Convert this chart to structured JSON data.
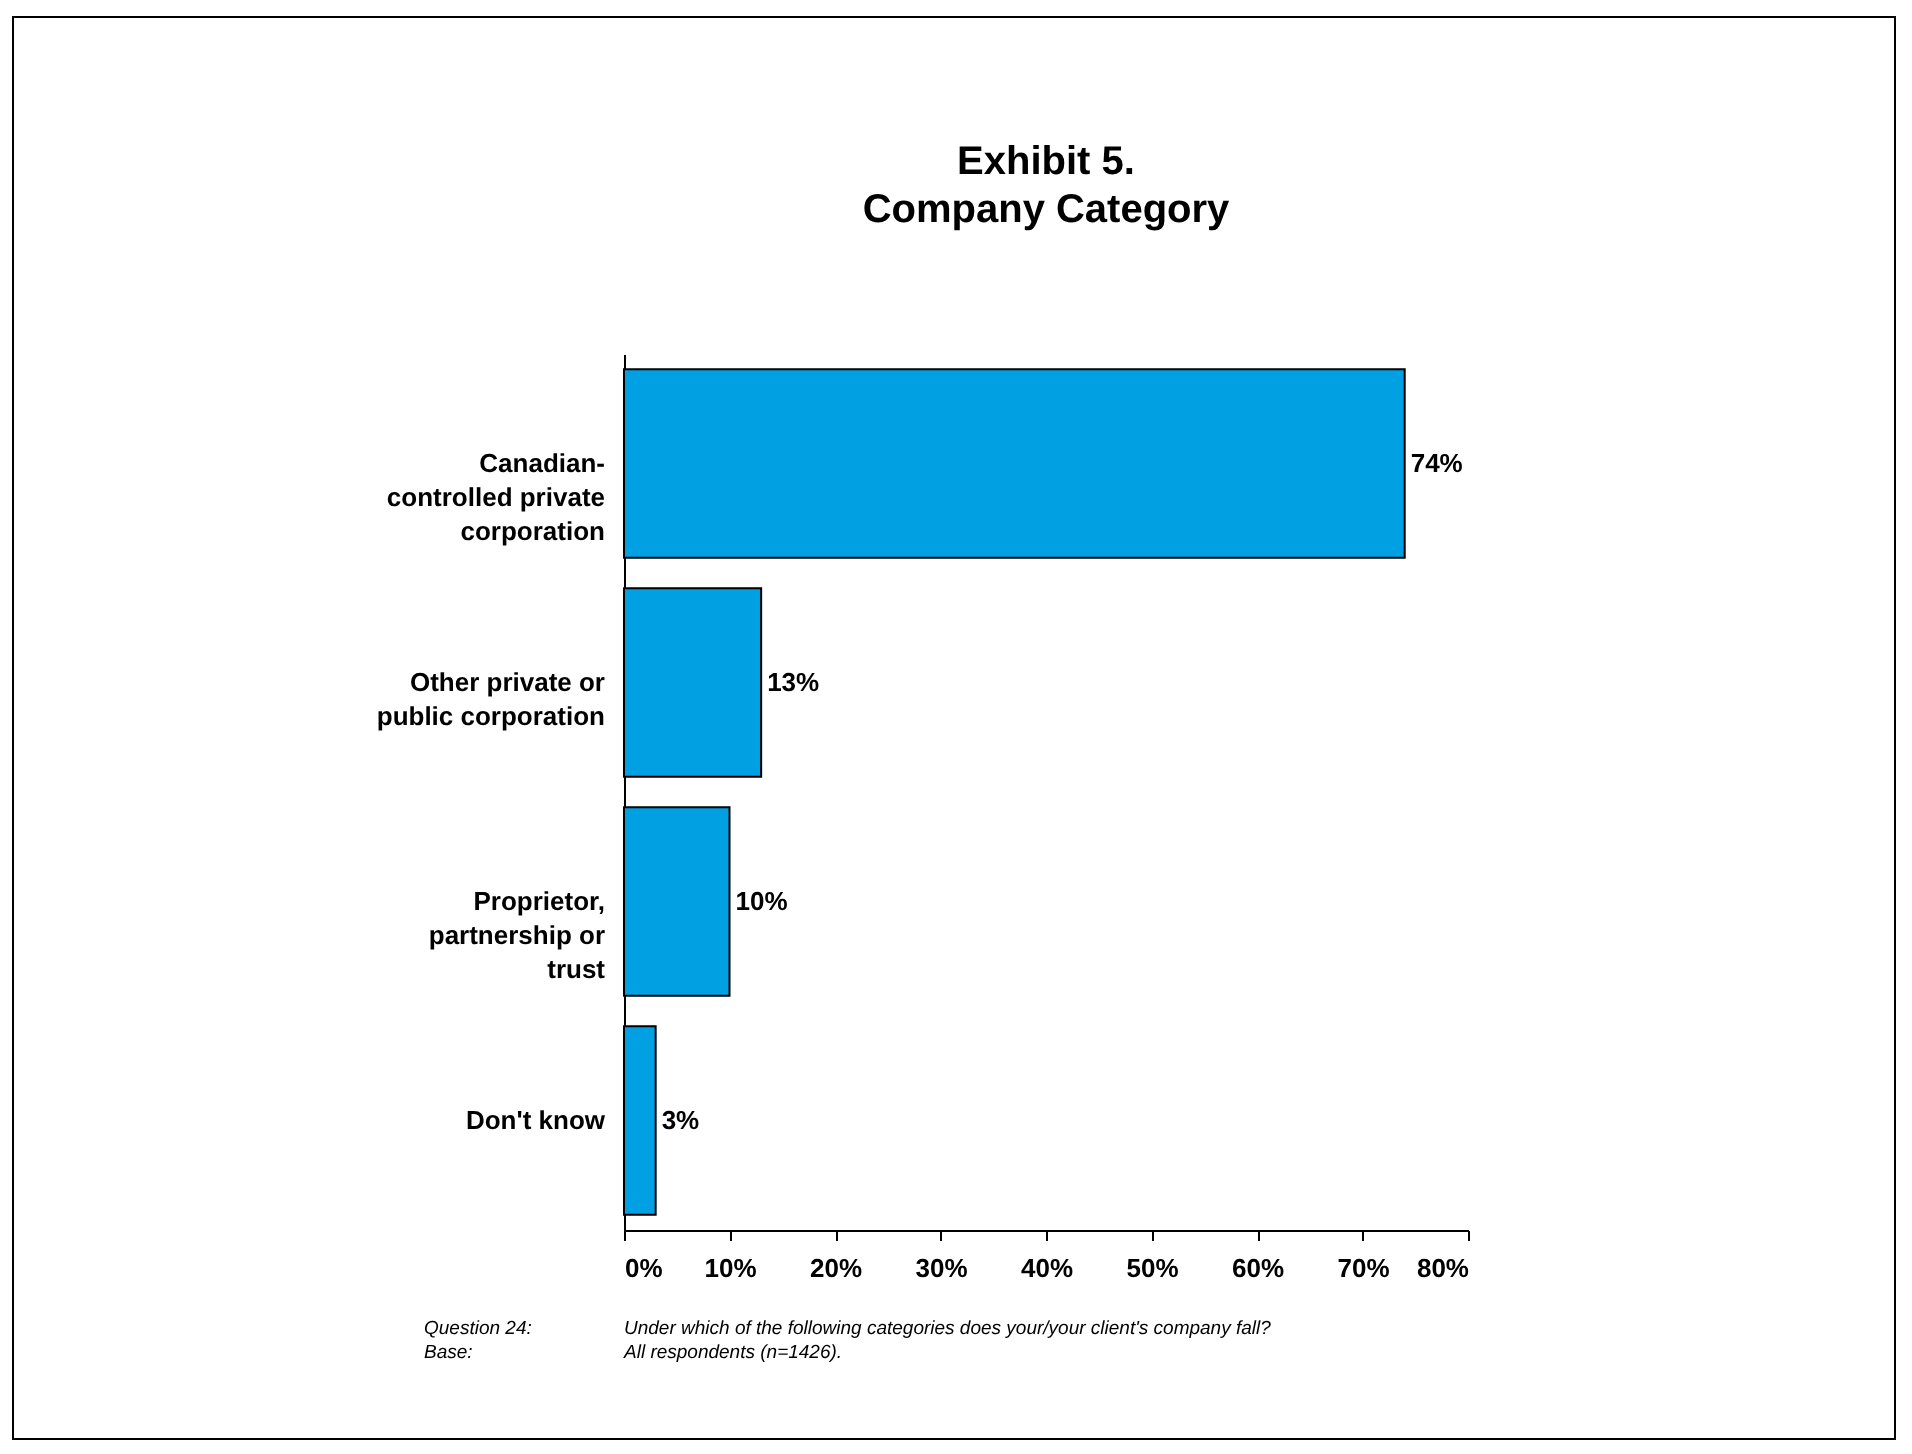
{
  "chart_data": {
    "type": "bar",
    "orientation": "horizontal",
    "title": "Exhibit 5.",
    "subtitle": "Company Category",
    "categories": [
      "Canadian-controlled private corporation",
      "Other private or public corporation",
      "Proprietor, partnership or trust",
      "Don't know"
    ],
    "values": [
      74,
      13,
      10,
      3
    ],
    "value_labels": [
      "74%",
      "13%",
      "10%",
      "3%"
    ],
    "color": "#00a0e2",
    "xlim": [
      0,
      80
    ],
    "xticks": [
      {
        "value": 0,
        "label": "0%"
      },
      {
        "value": 10,
        "label": "10%"
      },
      {
        "value": 20,
        "label": "20%"
      },
      {
        "value": 30,
        "label": "30%"
      },
      {
        "value": 40,
        "label": "40%"
      },
      {
        "value": 50,
        "label": "50%"
      },
      {
        "value": 60,
        "label": "60%"
      },
      {
        "value": 70,
        "label": "70%"
      },
      {
        "value": 80,
        "label": "80%"
      }
    ],
    "grid": false,
    "annotations": [
      "Question 24:",
      "Under which of the following categories does your/your client's company fall?",
      "Base:",
      "All respondents (n=1426)."
    ]
  }
}
